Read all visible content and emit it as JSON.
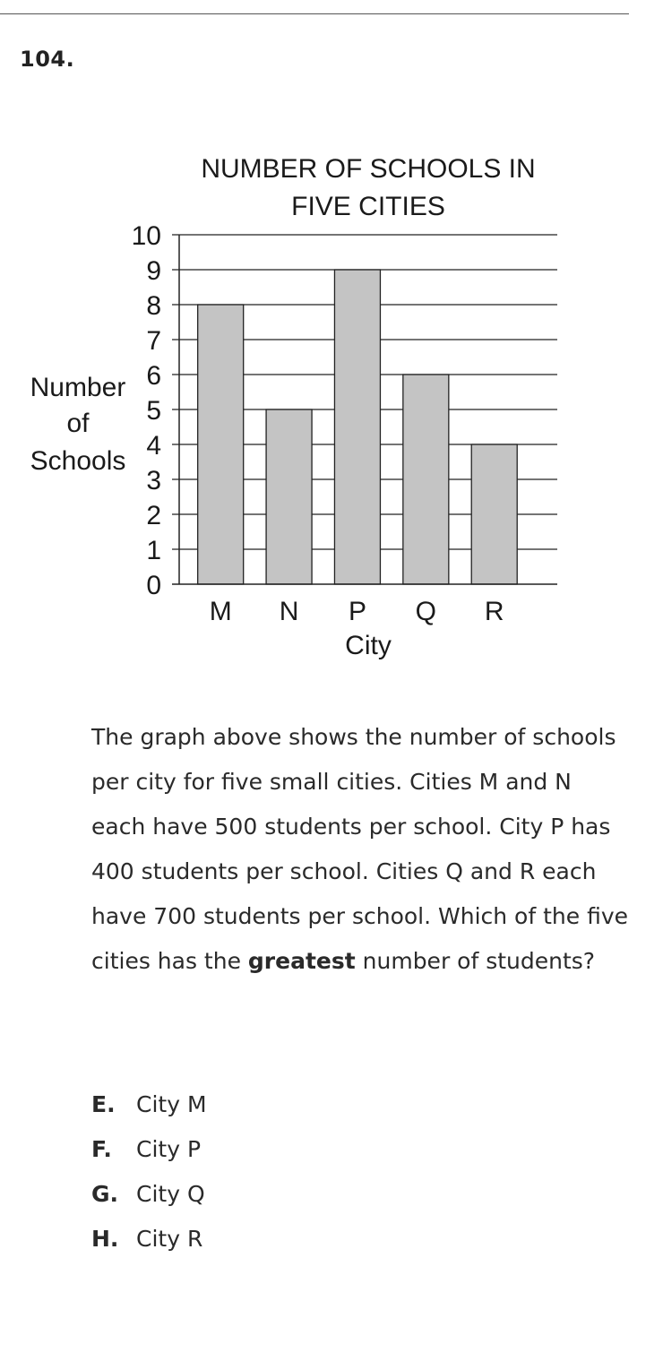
{
  "question": {
    "number": "104.",
    "text_before": "The graph above shows the number of schools per city for five small cities. Cities M and N each have 500 students per school. City P has 400 students per school. Cities Q and R each have 700 students per school. Which of the five cities has the ",
    "emphasis": "greatest",
    "text_after": " number of students?"
  },
  "choices": [
    {
      "letter": "E.",
      "text": "City M"
    },
    {
      "letter": "F.",
      "text": "City P"
    },
    {
      "letter": "G.",
      "text": "City Q"
    },
    {
      "letter": "H.",
      "text": "City R"
    }
  ],
  "chart_data": {
    "type": "bar",
    "title_lines": [
      "NUMBER OF SCHOOLS IN",
      "FIVE CITIES"
    ],
    "xlabel": "City",
    "ylabel_lines": [
      "Number",
      "of",
      "Schools"
    ],
    "categories": [
      "M",
      "N",
      "P",
      "Q",
      "R"
    ],
    "values": [
      8,
      5,
      9,
      6,
      4
    ],
    "ylim": [
      0,
      10
    ],
    "yticks": [
      "0",
      "1",
      "2",
      "3",
      "4",
      "5",
      "6",
      "7",
      "8",
      "9",
      "10"
    ],
    "grid": true,
    "bar_color": "#c4c4c4"
  }
}
